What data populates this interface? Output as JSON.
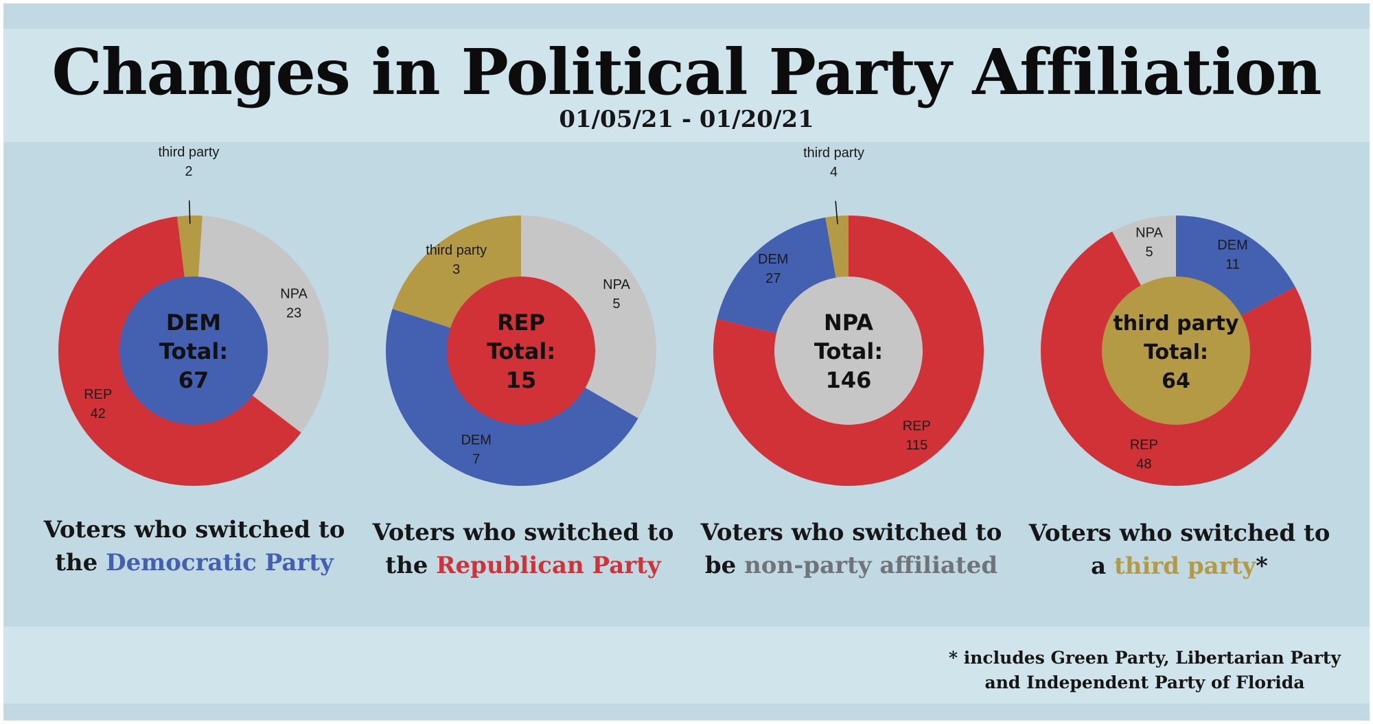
{
  "title": "Changes in Political Party Affiliation",
  "date_range": "01/05/21 - 01/20/21",
  "colors": {
    "DEM": "#4460b0",
    "REP": "#d03238",
    "NPA": "#c6c6c6",
    "third party": "#b59a45",
    "npa_text": "#6f7478"
  },
  "chart_data": [
    {
      "type": "pie",
      "title": "Voters who switched to the Democratic Party",
      "center": {
        "party": "DEM",
        "total_label": "Total:",
        "total": "67"
      },
      "slices": [
        {
          "label": "third party",
          "value": 2
        },
        {
          "label": "NPA",
          "value": 23
        },
        {
          "label": "REP",
          "value": 42
        }
      ],
      "caption": {
        "line1": "Voters who switched to",
        "prefix": "the ",
        "highlight": "Democratic Party",
        "suffix": ""
      }
    },
    {
      "type": "pie",
      "title": "Voters who switched to the Republican Party",
      "center": {
        "party": "REP",
        "total_label": "Total:",
        "total": "15"
      },
      "slices": [
        {
          "label": "NPA",
          "value": 5
        },
        {
          "label": "DEM",
          "value": 7
        },
        {
          "label": "third party",
          "value": 3
        }
      ],
      "caption": {
        "line1": "Voters who switched to",
        "prefix": "the ",
        "highlight": "Republican Party",
        "suffix": ""
      }
    },
    {
      "type": "pie",
      "title": "Voters who switched to be non-party affiliated",
      "center": {
        "party": "NPA",
        "total_label": "Total:",
        "total": "146"
      },
      "slices": [
        {
          "label": "REP",
          "value": 115
        },
        {
          "label": "DEM",
          "value": 27
        },
        {
          "label": "third party",
          "value": 4
        }
      ],
      "caption": {
        "line1": "Voters who switched to",
        "prefix": "be ",
        "highlight": "non-party affiliated",
        "suffix": ""
      }
    },
    {
      "type": "pie",
      "title": "Voters who switched to a third party*",
      "center": {
        "party": "third party",
        "total_label": "Total:",
        "total": "64"
      },
      "slices": [
        {
          "label": "DEM",
          "value": 11
        },
        {
          "label": "REP",
          "value": 48
        },
        {
          "label": "NPA",
          "value": 5
        }
      ],
      "caption": {
        "line1": "Voters who switched to",
        "prefix": "a ",
        "highlight": "third party",
        "suffix": "*"
      }
    }
  ],
  "footnote": {
    "line1": "* includes Green Party, Libertarian Party",
    "line2": "and Independent Party of Florida"
  }
}
